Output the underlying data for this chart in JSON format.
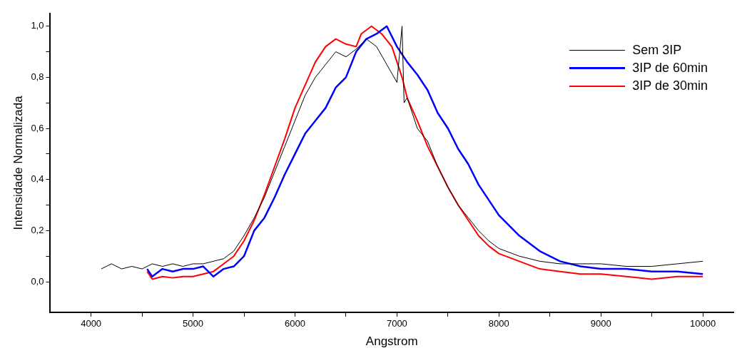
{
  "chart_data": {
    "type": "line",
    "xlabel": "Angstrom",
    "ylabel": "Intensidade Normalizada",
    "xlim": [
      3600,
      10300
    ],
    "ylim": [
      -0.12,
      1.05
    ],
    "xticks": [
      4000,
      {
        "value": 4500,
        "label": null
      },
      5000,
      {
        "value": 5500,
        "label": null
      },
      6000,
      {
        "value": 6500,
        "label": null
      },
      7000,
      {
        "value": 7500,
        "label": null
      },
      8000,
      {
        "value": 8500,
        "label": null
      },
      9000,
      {
        "value": 9500,
        "label": null
      },
      10000
    ],
    "yticks": [
      {
        "value": 0,
        "label": "0,0"
      },
      {
        "value": 0.1,
        "label": null
      },
      {
        "value": 0.2,
        "label": "0,2"
      },
      {
        "value": 0.3,
        "label": null
      },
      {
        "value": 0.4,
        "label": "0,4"
      },
      {
        "value": 0.5,
        "label": null
      },
      {
        "value": 0.6,
        "label": "0,6"
      },
      {
        "value": 0.7,
        "label": null
      },
      {
        "value": 0.8,
        "label": "0,8"
      },
      {
        "value": 0.9,
        "label": null
      },
      {
        "value": 1,
        "label": "1,0"
      }
    ],
    "grid": false,
    "legend": "top right",
    "marker": "none",
    "line_style": "solid",
    "series": [
      {
        "name": "Sem 3IP",
        "color": "#000000",
        "x": [
          4100,
          4200,
          4300,
          4400,
          4500,
          4600,
          4700,
          4800,
          4900,
          5000,
          5100,
          5200,
          5300,
          5400,
          5500,
          5600,
          5700,
          5800,
          5900,
          6000,
          6100,
          6200,
          6300,
          6400,
          6500,
          6600,
          6700,
          6800,
          6900,
          7000,
          7050,
          7070,
          7100,
          7200,
          7300,
          7400,
          7500,
          7600,
          7700,
          7800,
          7900,
          8000,
          8200,
          8400,
          8600,
          8800,
          9000,
          9250,
          9500,
          9750,
          10000
        ],
        "values": [
          0.05,
          0.07,
          0.05,
          0.06,
          0.05,
          0.07,
          0.06,
          0.07,
          0.06,
          0.07,
          0.07,
          0.08,
          0.09,
          0.12,
          0.18,
          0.25,
          0.33,
          0.43,
          0.53,
          0.63,
          0.73,
          0.8,
          0.85,
          0.9,
          0.88,
          0.91,
          0.95,
          0.92,
          0.85,
          0.78,
          1.0,
          0.7,
          0.72,
          0.6,
          0.55,
          0.45,
          0.37,
          0.3,
          0.25,
          0.2,
          0.16,
          0.13,
          0.1,
          0.08,
          0.07,
          0.07,
          0.07,
          0.06,
          0.06,
          0.07,
          0.08
        ]
      },
      {
        "name": "3IP de 60min",
        "color": "#0000ff",
        "x": [
          4550,
          4600,
          4700,
          4800,
          4900,
          5000,
          5100,
          5200,
          5300,
          5400,
          5500,
          5600,
          5700,
          5800,
          5900,
          6000,
          6100,
          6200,
          6300,
          6400,
          6500,
          6600,
          6700,
          6800,
          6900,
          7000,
          7100,
          7200,
          7300,
          7400,
          7500,
          7600,
          7700,
          7800,
          7900,
          8000,
          8200,
          8400,
          8600,
          8800,
          9000,
          9250,
          9500,
          9750,
          10000
        ],
        "values": [
          0.05,
          0.02,
          0.05,
          0.04,
          0.05,
          0.05,
          0.06,
          0.02,
          0.05,
          0.06,
          0.1,
          0.2,
          0.25,
          0.33,
          0.42,
          0.5,
          0.58,
          0.63,
          0.68,
          0.76,
          0.8,
          0.9,
          0.95,
          0.97,
          1.0,
          0.92,
          0.86,
          0.81,
          0.75,
          0.66,
          0.6,
          0.52,
          0.46,
          0.38,
          0.32,
          0.26,
          0.18,
          0.12,
          0.08,
          0.06,
          0.05,
          0.05,
          0.04,
          0.04,
          0.03
        ]
      },
      {
        "name": "3IP de 30min",
        "color": "#ff0000",
        "x": [
          4550,
          4600,
          4700,
          4800,
          4900,
          5000,
          5100,
          5200,
          5300,
          5400,
          5500,
          5600,
          5700,
          5800,
          5900,
          6000,
          6100,
          6200,
          6300,
          6400,
          6500,
          6600,
          6650,
          6750,
          6850,
          6950,
          7050,
          7100,
          7200,
          7300,
          7400,
          7500,
          7600,
          7700,
          7800,
          7900,
          8000,
          8200,
          8400,
          8600,
          8800,
          9000,
          9250,
          9500,
          9750,
          10000
        ],
        "values": [
          0.04,
          0.01,
          0.02,
          0.015,
          0.02,
          0.02,
          0.03,
          0.04,
          0.07,
          0.1,
          0.16,
          0.24,
          0.34,
          0.45,
          0.56,
          0.68,
          0.77,
          0.86,
          0.92,
          0.95,
          0.93,
          0.92,
          0.97,
          1.0,
          0.97,
          0.92,
          0.8,
          0.72,
          0.63,
          0.53,
          0.45,
          0.37,
          0.3,
          0.24,
          0.18,
          0.14,
          0.11,
          0.08,
          0.05,
          0.04,
          0.03,
          0.03,
          0.02,
          0.01,
          0.02,
          0.02
        ]
      }
    ]
  }
}
